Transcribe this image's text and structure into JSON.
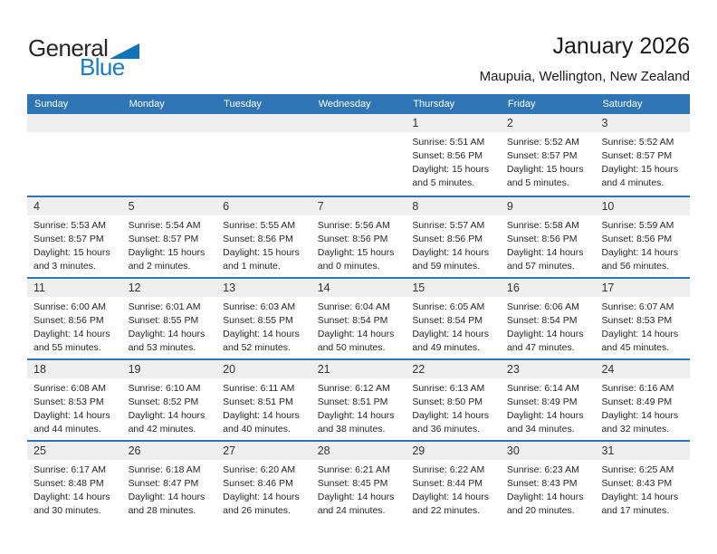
{
  "logo": {
    "general": "General",
    "blue": "Blue"
  },
  "header": {
    "title": "January 2026",
    "subtitle": "Maupuia, Wellington, New Zealand"
  },
  "colors": {
    "header_bar": "#2E75B6",
    "row_divider": "#2E75B6",
    "day_strip_bg": "#EFEFEF",
    "logo_triangle_blue": "#1273B9",
    "logo_text_blue": "#1B7CC4"
  },
  "weekdays": [
    "Sunday",
    "Monday",
    "Tuesday",
    "Wednesday",
    "Thursday",
    "Friday",
    "Saturday"
  ],
  "weeks": [
    [
      null,
      null,
      null,
      null,
      {
        "day": "1",
        "sunrise": "Sunrise: 5:51 AM",
        "sunset": "Sunset: 8:56 PM",
        "daylight": "Daylight: 15 hours and 5 minutes."
      },
      {
        "day": "2",
        "sunrise": "Sunrise: 5:52 AM",
        "sunset": "Sunset: 8:57 PM",
        "daylight": "Daylight: 15 hours and 5 minutes."
      },
      {
        "day": "3",
        "sunrise": "Sunrise: 5:52 AM",
        "sunset": "Sunset: 8:57 PM",
        "daylight": "Daylight: 15 hours and 4 minutes."
      }
    ],
    [
      {
        "day": "4",
        "sunrise": "Sunrise: 5:53 AM",
        "sunset": "Sunset: 8:57 PM",
        "daylight": "Daylight: 15 hours and 3 minutes."
      },
      {
        "day": "5",
        "sunrise": "Sunrise: 5:54 AM",
        "sunset": "Sunset: 8:57 PM",
        "daylight": "Daylight: 15 hours and 2 minutes."
      },
      {
        "day": "6",
        "sunrise": "Sunrise: 5:55 AM",
        "sunset": "Sunset: 8:56 PM",
        "daylight": "Daylight: 15 hours and 1 minute."
      },
      {
        "day": "7",
        "sunrise": "Sunrise: 5:56 AM",
        "sunset": "Sunset: 8:56 PM",
        "daylight": "Daylight: 15 hours and 0 minutes."
      },
      {
        "day": "8",
        "sunrise": "Sunrise: 5:57 AM",
        "sunset": "Sunset: 8:56 PM",
        "daylight": "Daylight: 14 hours and 59 minutes."
      },
      {
        "day": "9",
        "sunrise": "Sunrise: 5:58 AM",
        "sunset": "Sunset: 8:56 PM",
        "daylight": "Daylight: 14 hours and 57 minutes."
      },
      {
        "day": "10",
        "sunrise": "Sunrise: 5:59 AM",
        "sunset": "Sunset: 8:56 PM",
        "daylight": "Daylight: 14 hours and 56 minutes."
      }
    ],
    [
      {
        "day": "11",
        "sunrise": "Sunrise: 6:00 AM",
        "sunset": "Sunset: 8:56 PM",
        "daylight": "Daylight: 14 hours and 55 minutes."
      },
      {
        "day": "12",
        "sunrise": "Sunrise: 6:01 AM",
        "sunset": "Sunset: 8:55 PM",
        "daylight": "Daylight: 14 hours and 53 minutes."
      },
      {
        "day": "13",
        "sunrise": "Sunrise: 6:03 AM",
        "sunset": "Sunset: 8:55 PM",
        "daylight": "Daylight: 14 hours and 52 minutes."
      },
      {
        "day": "14",
        "sunrise": "Sunrise: 6:04 AM",
        "sunset": "Sunset: 8:54 PM",
        "daylight": "Daylight: 14 hours and 50 minutes."
      },
      {
        "day": "15",
        "sunrise": "Sunrise: 6:05 AM",
        "sunset": "Sunset: 8:54 PM",
        "daylight": "Daylight: 14 hours and 49 minutes."
      },
      {
        "day": "16",
        "sunrise": "Sunrise: 6:06 AM",
        "sunset": "Sunset: 8:54 PM",
        "daylight": "Daylight: 14 hours and 47 minutes."
      },
      {
        "day": "17",
        "sunrise": "Sunrise: 6:07 AM",
        "sunset": "Sunset: 8:53 PM",
        "daylight": "Daylight: 14 hours and 45 minutes."
      }
    ],
    [
      {
        "day": "18",
        "sunrise": "Sunrise: 6:08 AM",
        "sunset": "Sunset: 8:53 PM",
        "daylight": "Daylight: 14 hours and 44 minutes."
      },
      {
        "day": "19",
        "sunrise": "Sunrise: 6:10 AM",
        "sunset": "Sunset: 8:52 PM",
        "daylight": "Daylight: 14 hours and 42 minutes."
      },
      {
        "day": "20",
        "sunrise": "Sunrise: 6:11 AM",
        "sunset": "Sunset: 8:51 PM",
        "daylight": "Daylight: 14 hours and 40 minutes."
      },
      {
        "day": "21",
        "sunrise": "Sunrise: 6:12 AM",
        "sunset": "Sunset: 8:51 PM",
        "daylight": "Daylight: 14 hours and 38 minutes."
      },
      {
        "day": "22",
        "sunrise": "Sunrise: 6:13 AM",
        "sunset": "Sunset: 8:50 PM",
        "daylight": "Daylight: 14 hours and 36 minutes."
      },
      {
        "day": "23",
        "sunrise": "Sunrise: 6:14 AM",
        "sunset": "Sunset: 8:49 PM",
        "daylight": "Daylight: 14 hours and 34 minutes."
      },
      {
        "day": "24",
        "sunrise": "Sunrise: 6:16 AM",
        "sunset": "Sunset: 8:49 PM",
        "daylight": "Daylight: 14 hours and 32 minutes."
      }
    ],
    [
      {
        "day": "25",
        "sunrise": "Sunrise: 6:17 AM",
        "sunset": "Sunset: 8:48 PM",
        "daylight": "Daylight: 14 hours and 30 minutes."
      },
      {
        "day": "26",
        "sunrise": "Sunrise: 6:18 AM",
        "sunset": "Sunset: 8:47 PM",
        "daylight": "Daylight: 14 hours and 28 minutes."
      },
      {
        "day": "27",
        "sunrise": "Sunrise: 6:20 AM",
        "sunset": "Sunset: 8:46 PM",
        "daylight": "Daylight: 14 hours and 26 minutes."
      },
      {
        "day": "28",
        "sunrise": "Sunrise: 6:21 AM",
        "sunset": "Sunset: 8:45 PM",
        "daylight": "Daylight: 14 hours and 24 minutes."
      },
      {
        "day": "29",
        "sunrise": "Sunrise: 6:22 AM",
        "sunset": "Sunset: 8:44 PM",
        "daylight": "Daylight: 14 hours and 22 minutes."
      },
      {
        "day": "30",
        "sunrise": "Sunrise: 6:23 AM",
        "sunset": "Sunset: 8:43 PM",
        "daylight": "Daylight: 14 hours and 20 minutes."
      },
      {
        "day": "31",
        "sunrise": "Sunrise: 6:25 AM",
        "sunset": "Sunset: 8:43 PM",
        "daylight": "Daylight: 14 hours and 17 minutes."
      }
    ]
  ]
}
